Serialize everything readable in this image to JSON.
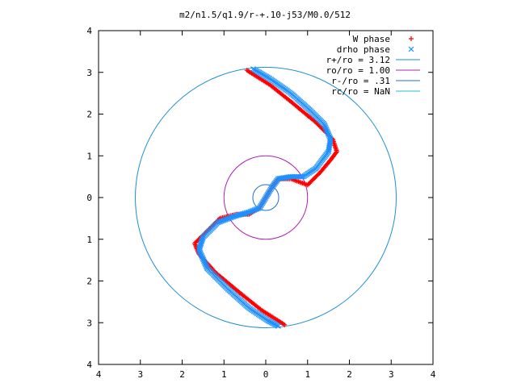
{
  "chart_data": {
    "type": "scatter",
    "title": "m2/n1.5/q1.9/r-+.10-j53/M0.0/512",
    "xlim": [
      -4,
      4
    ],
    "ylim": [
      -4,
      4
    ],
    "x_ticks": [
      -4,
      -3,
      -2,
      -1,
      0,
      1,
      2,
      3,
      4
    ],
    "y_ticks": [
      -4,
      -3,
      -2,
      -1,
      0,
      1,
      2,
      3,
      4
    ],
    "x_tick_labels": [
      "4",
      "3",
      "2",
      "1",
      "0",
      "1",
      "2",
      "3",
      "4"
    ],
    "y_tick_labels": [
      "4",
      "3",
      "2",
      "1",
      "0",
      "1",
      "2",
      "3",
      "4"
    ],
    "grid": false,
    "legend_position": "top-right",
    "series": [
      {
        "name": "W phase",
        "marker": "plus",
        "color": "#ff0000",
        "points": [
          [
            -0.45,
            3.05
          ],
          [
            0.1,
            2.7
          ],
          [
            0.6,
            2.3
          ],
          [
            1.2,
            1.8
          ],
          [
            1.6,
            1.4
          ],
          [
            1.7,
            1.1
          ],
          [
            1.55,
            0.9
          ],
          [
            1.3,
            0.6
          ],
          [
            1.0,
            0.3
          ],
          [
            0.6,
            0.45
          ],
          [
            0.3,
            0.45
          ],
          [
            0.15,
            0.25
          ],
          [
            -0.15,
            -0.25
          ],
          [
            -0.4,
            -0.4
          ],
          [
            -0.7,
            -0.4
          ],
          [
            -1.1,
            -0.5
          ],
          [
            -1.5,
            -0.9
          ],
          [
            -1.7,
            -1.1
          ],
          [
            -1.6,
            -1.35
          ],
          [
            -1.2,
            -1.8
          ],
          [
            -0.6,
            -2.3
          ],
          [
            -0.1,
            -2.7
          ],
          [
            0.45,
            -3.05
          ]
        ]
      },
      {
        "name": "drho phase",
        "marker": "cross",
        "color": "#1e90ff",
        "points": [
          [
            -0.3,
            3.08
          ],
          [
            0.1,
            2.85
          ],
          [
            0.6,
            2.5
          ],
          [
            1.05,
            2.1
          ],
          [
            1.4,
            1.75
          ],
          [
            1.55,
            1.4
          ],
          [
            1.5,
            1.1
          ],
          [
            1.2,
            0.7
          ],
          [
            0.9,
            0.5
          ],
          [
            0.6,
            0.5
          ],
          [
            0.3,
            0.45
          ],
          [
            0.15,
            0.25
          ],
          [
            -0.15,
            -0.25
          ],
          [
            -0.4,
            -0.35
          ],
          [
            -0.75,
            -0.45
          ],
          [
            -1.15,
            -0.6
          ],
          [
            -1.5,
            -0.95
          ],
          [
            -1.6,
            -1.25
          ],
          [
            -1.4,
            -1.7
          ],
          [
            -0.9,
            -2.2
          ],
          [
            -0.4,
            -2.65
          ],
          [
            0.05,
            -2.95
          ],
          [
            0.3,
            -3.08
          ]
        ]
      },
      {
        "name": "r+/ro = 3.12",
        "type": "circle",
        "radius": 3.12,
        "color": "#1f8fd0"
      },
      {
        "name": "ro/ro = 1.00",
        "type": "circle",
        "radius": 1.0,
        "color": "#b020b0"
      },
      {
        "name": "r-/ro = .31",
        "type": "circle",
        "radius": 0.31,
        "color": "#1f6fd0"
      },
      {
        "name": "rc/ro = NaN",
        "type": "circle",
        "radius": null,
        "color": "#20c0d8"
      }
    ]
  }
}
